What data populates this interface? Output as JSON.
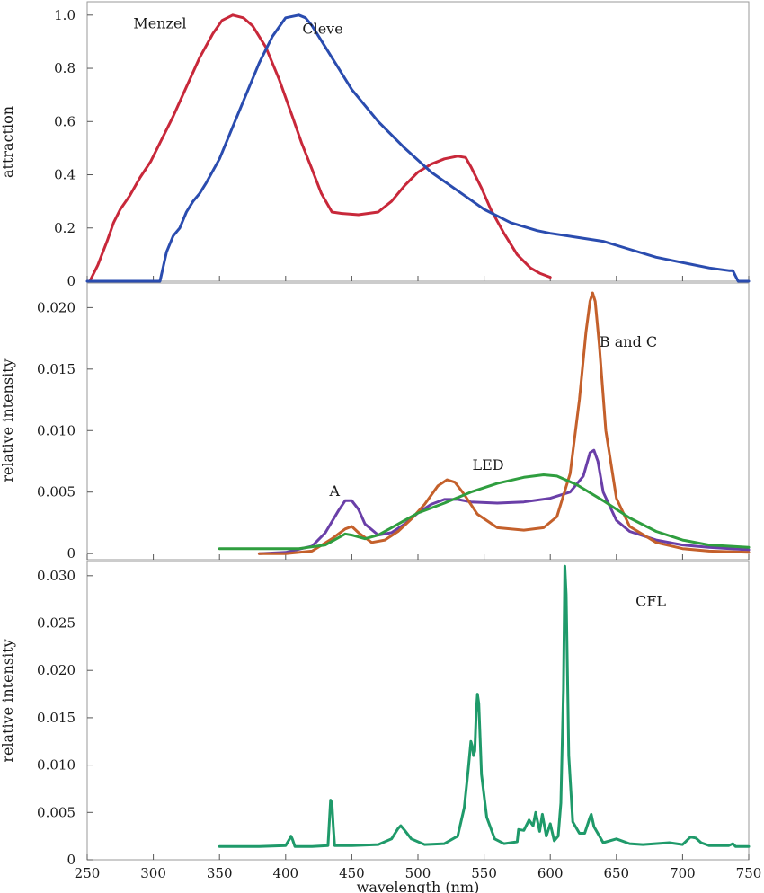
{
  "chart_data": [
    {
      "type": "line",
      "ylabel": "attraction",
      "xlim": [
        250,
        750
      ],
      "ylim": [
        0,
        1.05
      ],
      "yticks": [
        0,
        0.2,
        0.4,
        0.6,
        0.8,
        1.0
      ],
      "ytick_labels": [
        "0",
        "0.2",
        "0.4",
        "0.6",
        "0.8",
        "1.0"
      ],
      "grid": false,
      "series": [
        {
          "name": "Menzel",
          "color": "#c8283a",
          "x": [
            252,
            258,
            265,
            270,
            275,
            282,
            290,
            298,
            305,
            315,
            325,
            335,
            345,
            352,
            360,
            368,
            375,
            385,
            395,
            405,
            412,
            420,
            427,
            435,
            442,
            455,
            470,
            480,
            490,
            500,
            510,
            520,
            530,
            536,
            540,
            548,
            555,
            565,
            575,
            585,
            592,
            600
          ],
          "y": [
            0.0,
            0.06,
            0.15,
            0.22,
            0.27,
            0.32,
            0.39,
            0.45,
            0.52,
            0.62,
            0.73,
            0.84,
            0.93,
            0.98,
            1.0,
            0.99,
            0.96,
            0.88,
            0.76,
            0.62,
            0.52,
            0.42,
            0.33,
            0.26,
            0.255,
            0.25,
            0.26,
            0.3,
            0.36,
            0.41,
            0.44,
            0.46,
            0.47,
            0.465,
            0.43,
            0.35,
            0.27,
            0.18,
            0.1,
            0.05,
            0.03,
            0.015
          ]
        },
        {
          "name": "Cleve",
          "color": "#2a4caf",
          "x": [
            250,
            260,
            280,
            300,
            305,
            310,
            315,
            320,
            325,
            330,
            335,
            340,
            350,
            360,
            370,
            380,
            390,
            400,
            410,
            415,
            420,
            430,
            440,
            450,
            470,
            490,
            510,
            530,
            550,
            570,
            590,
            600,
            620,
            640,
            660,
            680,
            700,
            720,
            735,
            738,
            742,
            750
          ],
          "y": [
            0.0,
            0.0,
            0.0,
            0.0,
            0.0,
            0.11,
            0.17,
            0.2,
            0.26,
            0.3,
            0.33,
            0.37,
            0.46,
            0.58,
            0.7,
            0.82,
            0.92,
            0.99,
            1.0,
            0.99,
            0.96,
            0.88,
            0.8,
            0.72,
            0.6,
            0.5,
            0.41,
            0.34,
            0.27,
            0.22,
            0.19,
            0.18,
            0.165,
            0.15,
            0.12,
            0.09,
            0.07,
            0.05,
            0.04,
            0.04,
            0.0,
            0.0
          ]
        }
      ],
      "annotations": [
        {
          "text": "Menzel",
          "x": 305,
          "y": 0.95
        },
        {
          "text": "Cleve",
          "x": 428,
          "y": 0.93
        }
      ]
    },
    {
      "type": "line",
      "ylabel": "relative intensity",
      "xlim": [
        250,
        750
      ],
      "ylim": [
        -0.0005,
        0.022
      ],
      "yticks": [
        0,
        0.005,
        0.01,
        0.015,
        0.02
      ],
      "ytick_labels": [
        "0",
        "0.005",
        "0.010",
        "0.015",
        "0.020"
      ],
      "grid": false,
      "series": [
        {
          "name": "A",
          "color": "#6a3fa8",
          "x": [
            380,
            400,
            420,
            430,
            440,
            445,
            450,
            455,
            460,
            470,
            480,
            490,
            500,
            510,
            520,
            530,
            540,
            560,
            580,
            600,
            615,
            625,
            630,
            633,
            636,
            640,
            650,
            660,
            680,
            700,
            720,
            750
          ],
          "y": [
            0.0,
            0.0001,
            0.0006,
            0.0017,
            0.0035,
            0.0043,
            0.0043,
            0.0036,
            0.0024,
            0.0015,
            0.0017,
            0.0024,
            0.0033,
            0.004,
            0.0044,
            0.0044,
            0.0042,
            0.0041,
            0.0042,
            0.0045,
            0.005,
            0.0063,
            0.0082,
            0.0084,
            0.0075,
            0.005,
            0.0027,
            0.0018,
            0.0011,
            0.0007,
            0.0005,
            0.0003
          ]
        },
        {
          "name": "B and C",
          "color": "#c4602b",
          "x": [
            380,
            400,
            420,
            435,
            445,
            450,
            455,
            465,
            475,
            485,
            495,
            505,
            515,
            522,
            528,
            535,
            545,
            560,
            580,
            595,
            605,
            615,
            622,
            627,
            630,
            632,
            634,
            637,
            642,
            650,
            660,
            680,
            700,
            720,
            750
          ],
          "y": [
            0.0,
            0.0,
            0.0002,
            0.0012,
            0.002,
            0.0022,
            0.0017,
            0.0009,
            0.0011,
            0.0018,
            0.0028,
            0.004,
            0.0055,
            0.006,
            0.0058,
            0.0048,
            0.0032,
            0.0021,
            0.0019,
            0.0021,
            0.003,
            0.0065,
            0.0125,
            0.018,
            0.0205,
            0.0212,
            0.0205,
            0.017,
            0.01,
            0.0045,
            0.0022,
            0.0009,
            0.0004,
            0.0002,
            0.0001
          ]
        },
        {
          "name": "LED",
          "color": "#2f9e3f",
          "x": [
            350,
            380,
            410,
            430,
            440,
            445,
            450,
            460,
            470,
            480,
            490,
            500,
            520,
            540,
            560,
            580,
            595,
            605,
            620,
            640,
            660,
            680,
            700,
            720,
            750
          ],
          "y": [
            0.0004,
            0.0004,
            0.0004,
            0.0007,
            0.0013,
            0.0016,
            0.0015,
            0.0012,
            0.0015,
            0.0021,
            0.0027,
            0.0033,
            0.0041,
            0.005,
            0.0057,
            0.0062,
            0.0064,
            0.0063,
            0.0056,
            0.0043,
            0.0029,
            0.0018,
            0.0011,
            0.0007,
            0.0005
          ]
        }
      ],
      "annotations": [
        {
          "text": "A",
          "x": 437,
          "y": 0.0047
        },
        {
          "text": "LED",
          "x": 553,
          "y": 0.0068
        },
        {
          "text": "B and C",
          "x": 659,
          "y": 0.0168
        }
      ]
    },
    {
      "type": "line",
      "ylabel": "relative intensity",
      "xlabel": "wavelength (nm)",
      "xlim": [
        250,
        750
      ],
      "ylim": [
        0,
        0.0315
      ],
      "xticks": [
        250,
        300,
        350,
        400,
        450,
        500,
        550,
        600,
        650,
        700,
        750
      ],
      "xtick_labels": [
        "250",
        "300",
        "350",
        "400",
        "450",
        "500",
        "550",
        "600",
        "650",
        "700",
        "750"
      ],
      "yticks": [
        0,
        0.005,
        0.01,
        0.015,
        0.02,
        0.025,
        0.03
      ],
      "ytick_labels": [
        "0",
        "0.005",
        "0.010",
        "0.015",
        "0.020",
        "0.025",
        "0.030"
      ],
      "grid": false,
      "series": [
        {
          "name": "CFL",
          "color": "#1f9a6a",
          "x": [
            350,
            380,
            400,
            403,
            404,
            405,
            407,
            420,
            432,
            433,
            434,
            435,
            436,
            437,
            450,
            470,
            480,
            485,
            487,
            490,
            495,
            505,
            520,
            530,
            535,
            538,
            540,
            541,
            542,
            543,
            544,
            545,
            546,
            548,
            552,
            558,
            565,
            575,
            576,
            580,
            584,
            587,
            589,
            592,
            594,
            597,
            600,
            603,
            606,
            608,
            610,
            611,
            612,
            614,
            617,
            622,
            626,
            630,
            631,
            633,
            640,
            650,
            660,
            670,
            690,
            700,
            706,
            710,
            714,
            720,
            735,
            738,
            740,
            750
          ],
          "y": [
            0.0014,
            0.0014,
            0.0015,
            0.0022,
            0.0025,
            0.0022,
            0.0014,
            0.0014,
            0.0015,
            0.004,
            0.0063,
            0.006,
            0.0035,
            0.0015,
            0.0015,
            0.0016,
            0.0022,
            0.0033,
            0.0036,
            0.0031,
            0.0022,
            0.0016,
            0.0017,
            0.0025,
            0.0055,
            0.0095,
            0.0125,
            0.012,
            0.011,
            0.0115,
            0.0155,
            0.0175,
            0.0165,
            0.009,
            0.0045,
            0.0022,
            0.0017,
            0.0019,
            0.0032,
            0.0031,
            0.0042,
            0.0036,
            0.005,
            0.003,
            0.0048,
            0.0025,
            0.0038,
            0.002,
            0.0025,
            0.006,
            0.018,
            0.031,
            0.028,
            0.011,
            0.004,
            0.0028,
            0.0028,
            0.0045,
            0.0048,
            0.0035,
            0.0018,
            0.0022,
            0.0017,
            0.0016,
            0.0018,
            0.0016,
            0.0024,
            0.0023,
            0.0018,
            0.0015,
            0.0015,
            0.0017,
            0.0014,
            0.0014
          ]
        }
      ],
      "annotations": [
        {
          "text": "CFL",
          "x": 676,
          "y": 0.0268
        }
      ]
    }
  ]
}
